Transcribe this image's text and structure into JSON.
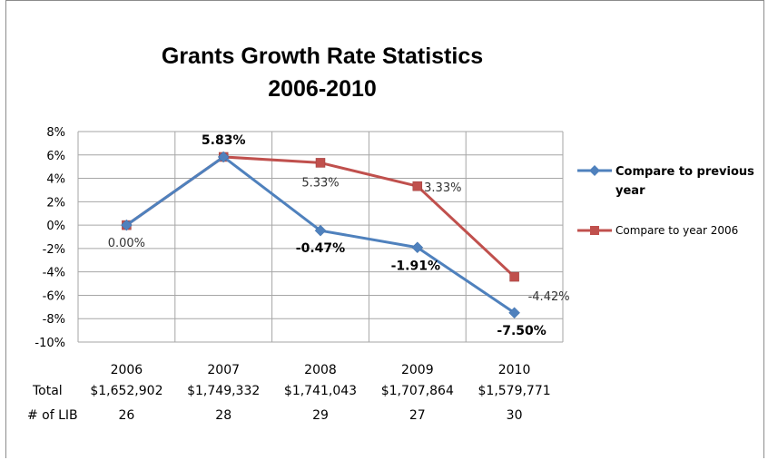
{
  "chart_data": {
    "type": "line",
    "title": [
      "Grants Growth Rate Statistics",
      "2006-2010"
    ],
    "categories": [
      "2006",
      "2007",
      "2008",
      "2009",
      "2010"
    ],
    "y_ticks": [
      "8%",
      "6%",
      "4%",
      "2%",
      "0%",
      "-2%",
      "-4%",
      "-6%",
      "-8%",
      "-10%"
    ],
    "ylim": [
      -10,
      8
    ],
    "grid": true,
    "legend_position": "right",
    "series": [
      {
        "name": "Compare to previous year",
        "name_lines": [
          "Compare to previous",
          "year"
        ],
        "color": "#4f81bd",
        "marker": "diamond",
        "values": [
          0.0,
          5.83,
          -0.47,
          -1.91,
          -7.5
        ],
        "labels": [
          "",
          "5.83%",
          "-0.47%",
          "-1.91%",
          "-7.50%"
        ]
      },
      {
        "name": "Compare to year 2006",
        "color": "#c0504d",
        "marker": "square",
        "values": [
          0.0,
          5.83,
          5.33,
          3.33,
          -4.42
        ],
        "labels": [
          "0.00%",
          "",
          "5.33%",
          "3.33%",
          "-4.42%"
        ]
      }
    ],
    "table": {
      "rows": [
        {
          "label": "Total",
          "values": [
            "$1,652,902",
            "$1,749,332",
            "$1,741,043",
            "$1,707,864",
            "$1,579,771"
          ]
        },
        {
          "label": "# of LIB",
          "values": [
            "26",
            "28",
            "29",
            "27",
            "30"
          ]
        }
      ]
    }
  }
}
